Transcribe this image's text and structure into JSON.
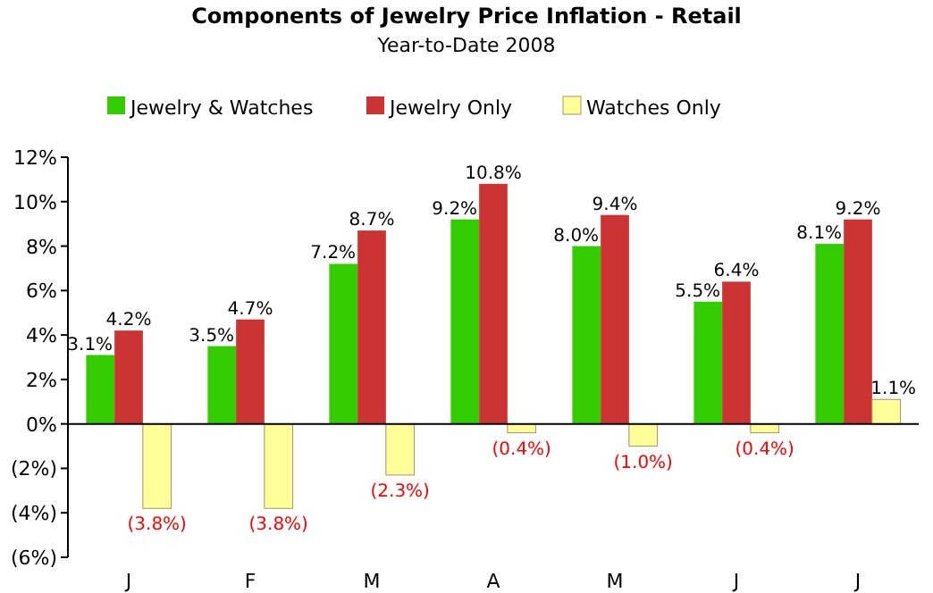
{
  "chart_data": {
    "type": "bar",
    "title": "Components of Jewelry Price Inflation - Retail",
    "subtitle": "Year-to-Date 2008",
    "categories": [
      "J",
      "F",
      "M",
      "A",
      "M",
      "J",
      "J"
    ],
    "series": [
      {
        "name": "Jewelry & Watches",
        "color": "#33cc00",
        "values": [
          3.1,
          3.5,
          7.2,
          9.2,
          8.0,
          5.5,
          8.1
        ],
        "value_labels": [
          "3.1%",
          "3.5%",
          "7.2%",
          "9.2%",
          "8.0%",
          "5.5%",
          "8.1%"
        ]
      },
      {
        "name": "Jewelry Only",
        "color": "#cc3333",
        "values": [
          4.2,
          4.7,
          8.7,
          10.8,
          9.4,
          6.4,
          9.2
        ],
        "value_labels": [
          "4.2%",
          "4.7%",
          "8.7%",
          "10.8%",
          "9.4%",
          "6.4%",
          "9.2%"
        ]
      },
      {
        "name": "Watches Only",
        "color": "#ffff99",
        "values": [
          -3.8,
          -3.8,
          -2.3,
          -0.4,
          -1.0,
          -0.4,
          1.1
        ],
        "value_labels": [
          "(3.8%)",
          "(3.8%)",
          "(2.3%)",
          "(0.4%)",
          "(1.0%)",
          "(0.4%)",
          "1.1%"
        ]
      }
    ],
    "ylim": [
      -6,
      12
    ],
    "yticks": [
      {
        "value": -6,
        "label": "(6%)"
      },
      {
        "value": -4,
        "label": "(4%)"
      },
      {
        "value": -2,
        "label": "(2%)"
      },
      {
        "value": 0,
        "label": "0%"
      },
      {
        "value": 2,
        "label": "2%"
      },
      {
        "value": 4,
        "label": "4%"
      },
      {
        "value": 6,
        "label": "6%"
      },
      {
        "value": 8,
        "label": "8%"
      },
      {
        "value": 10,
        "label": "10%"
      },
      {
        "value": 12,
        "label": "12%"
      }
    ],
    "legend": "top"
  }
}
